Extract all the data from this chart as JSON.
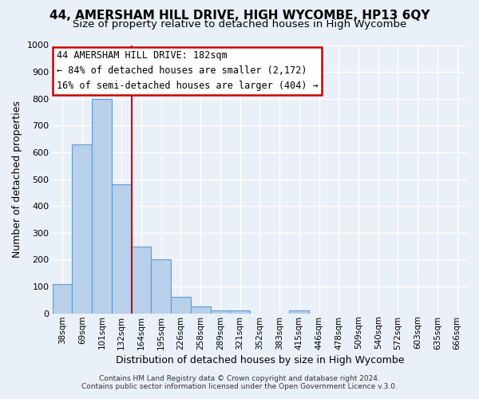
{
  "title": "44, AMERSHAM HILL DRIVE, HIGH WYCOMBE, HP13 6QY",
  "subtitle": "Size of property relative to detached houses in High Wycombe",
  "xlabel": "Distribution of detached houses by size in High Wycombe",
  "ylabel": "Number of detached properties",
  "bar_labels": [
    "38sqm",
    "69sqm",
    "101sqm",
    "132sqm",
    "164sqm",
    "195sqm",
    "226sqm",
    "258sqm",
    "289sqm",
    "321sqm",
    "352sqm",
    "383sqm",
    "415sqm",
    "446sqm",
    "478sqm",
    "509sqm",
    "540sqm",
    "572sqm",
    "603sqm",
    "635sqm",
    "666sqm"
  ],
  "bar_values": [
    110,
    630,
    800,
    480,
    250,
    200,
    60,
    25,
    12,
    10,
    0,
    0,
    10,
    0,
    0,
    0,
    0,
    0,
    0,
    0,
    0
  ],
  "bar_color": "#b8d0ea",
  "bar_edge_color": "#5b9bd5",
  "ylim": [
    0,
    1000
  ],
  "yticks": [
    0,
    100,
    200,
    300,
    400,
    500,
    600,
    700,
    800,
    900,
    1000
  ],
  "vline_x": 3.5,
  "vline_color": "#cc0000",
  "annotation_title": "44 AMERSHAM HILL DRIVE: 182sqm",
  "annotation_line1": "← 84% of detached houses are smaller (2,172)",
  "annotation_line2": "16% of semi-detached houses are larger (404) →",
  "annotation_box_color": "#cc0000",
  "footnote1": "Contains HM Land Registry data © Crown copyright and database right 2024.",
  "footnote2": "Contains public sector information licensed under the Open Government Licence v.3.0.",
  "background_color": "#eaf0f8",
  "plot_bg_color": "#eaf0f8",
  "grid_color": "#ffffff",
  "title_fontsize": 11,
  "subtitle_fontsize": 9.5
}
